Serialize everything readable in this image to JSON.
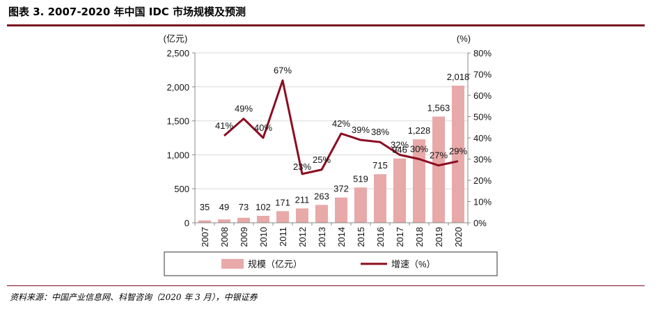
{
  "title": "图表 3. 2007-2020 年中国 IDC 市场规模及预测",
  "source": "资料来源：中国产业信息网、科智咨询（2020 年 3 月），中银证券",
  "colors": {
    "bar": "#e8a9a9",
    "line": "#8b0d22",
    "rule": "#7b0f1f"
  },
  "chart_data": {
    "type": "bar+line",
    "categories": [
      "2007",
      "2008",
      "2009",
      "2010",
      "2011",
      "2012",
      "2013",
      "2014",
      "2015",
      "2016",
      "2017",
      "2018",
      "2019",
      "2020"
    ],
    "series": [
      {
        "name": "规模（亿元）",
        "type": "bar",
        "axis": "left",
        "values": [
          35,
          49,
          73,
          102,
          171,
          211,
          263,
          372,
          519,
          715,
          946,
          1228,
          1563,
          2018
        ],
        "labels": [
          "35",
          "49",
          "73",
          "102",
          "171",
          "211",
          "263",
          "372",
          "519",
          "715",
          "946",
          "1,228",
          "1,563",
          "2,018"
        ]
      },
      {
        "name": "增速（%）",
        "type": "line",
        "axis": "right",
        "values": [
          null,
          41,
          49,
          40,
          67,
          23,
          25,
          42,
          39,
          38,
          32,
          30,
          27,
          29
        ],
        "labels": [
          "",
          "41%",
          "49%",
          "40%",
          "67%",
          "23%",
          "25%",
          "42%",
          "39%",
          "38%",
          "32%",
          "30%",
          "27%",
          "29%"
        ]
      }
    ],
    "y_left": {
      "unit_label": "(亿元)",
      "min": 0,
      "max": 2500,
      "ticks": [
        "0",
        "500",
        "1,000",
        "1,500",
        "2,000",
        "2,500"
      ]
    },
    "y_right": {
      "unit_label": "(%)",
      "min": 0,
      "max": 80,
      "ticks": [
        "0%",
        "10%",
        "20%",
        "30%",
        "40%",
        "50%",
        "60%",
        "70%",
        "80%"
      ]
    },
    "grid": true,
    "legend_position": "bottom"
  }
}
